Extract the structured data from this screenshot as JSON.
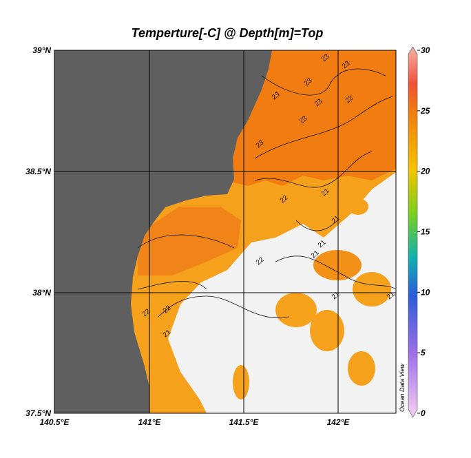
{
  "title": "Temperture[-C] @ Depth[m]=Top",
  "x_labels": [
    "140.5°E",
    "141°E",
    "141.5°E",
    "142°E"
  ],
  "y_labels": [
    "39°N",
    "38.5°N",
    "38°N",
    "37.5°N"
  ],
  "colorbar": {
    "ticks": [
      30,
      25,
      20,
      15,
      10,
      5,
      0
    ]
  },
  "contour_labels": [
    23,
    23,
    23,
    23,
    23,
    23,
    23,
    22,
    22,
    22,
    22,
    21,
    21,
    21,
    21,
    21,
    21,
    22,
    21
  ],
  "credit": "Ocean Data View"
}
